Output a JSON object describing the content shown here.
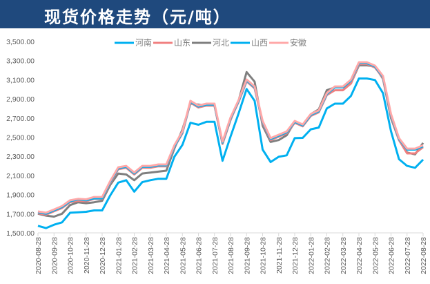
{
  "header": {
    "title": "现货价格走势（元/吨）"
  },
  "colors": {
    "header_bg": "#1f497d",
    "河南": "#00b0f0",
    "山东": "#f08080",
    "河北": "#7f7f7f",
    "山西": "#00b0f0",
    "安徽": "#ffa8a8"
  },
  "chart_data": {
    "type": "line",
    "title": "现货价格走势（元/吨）",
    "xlabel": "",
    "ylabel": "",
    "ylim": [
      1500,
      3500
    ],
    "yticks": [
      "1,500.00",
      "1,700.00",
      "1,900.00",
      "2,100.00",
      "2,300.00",
      "2,500.00",
      "2,700.00",
      "2,900.00",
      "3,100.00",
      "3,300.00",
      "3,500.00"
    ],
    "xtick_labels": [
      "2020-08-28",
      "2020-09-28",
      "2020-10-28",
      "2020-11-28",
      "2020-12-28",
      "2021-01-28",
      "2021-02-28",
      "2021-03-28",
      "2021-04-28",
      "2021-05-28",
      "2021-06-28",
      "2021-07-28",
      "2021-08-28",
      "2021-09-28",
      "2021-10-28",
      "2021-11-28",
      "2021-12-28",
      "2022-01-28",
      "2022-02-28",
      "2022-03-28",
      "2022-04-28",
      "2022-05-28",
      "2022-06-28",
      "2022-07-28",
      "2022-08-28"
    ],
    "grid": false,
    "legend_position": "top",
    "x": [
      "2020-08-28",
      "2020-09-13",
      "2020-09-28",
      "2020-10-13",
      "2020-10-28",
      "2020-11-13",
      "2020-11-28",
      "2020-12-13",
      "2020-12-28",
      "2021-01-13",
      "2021-01-28",
      "2021-02-13",
      "2021-02-28",
      "2021-03-13",
      "2021-03-28",
      "2021-04-13",
      "2021-04-28",
      "2021-05-13",
      "2021-05-28",
      "2021-06-13",
      "2021-06-28",
      "2021-07-13",
      "2021-07-28",
      "2021-08-13",
      "2021-08-28",
      "2021-09-13",
      "2021-09-28",
      "2021-10-13",
      "2021-10-28",
      "2021-11-13",
      "2021-11-28",
      "2021-12-13",
      "2021-12-28",
      "2022-01-13",
      "2022-01-28",
      "2022-02-13",
      "2022-02-28",
      "2022-03-13",
      "2022-03-28",
      "2022-04-13",
      "2022-04-28",
      "2022-05-13",
      "2022-05-28",
      "2022-06-13",
      "2022-06-28",
      "2022-07-13",
      "2022-07-28",
      "2022-08-13",
      "2022-08-28"
    ],
    "series": [
      {
        "name": "河南",
        "values": [
          1574,
          1550,
          1585,
          1610,
          1710,
          1715,
          1720,
          1735,
          1735,
          1890,
          2025,
          2050,
          1930,
          2030,
          2050,
          2065,
          2065,
          2295,
          2420,
          2650,
          2630,
          2660,
          2660,
          2253,
          2506,
          2746,
          3003,
          2880,
          2370,
          2240,
          2295,
          2310,
          2490,
          2493,
          2582,
          2600,
          2800,
          2850,
          2850,
          2930,
          3113,
          3113,
          3097,
          2960,
          2562,
          2270,
          2200,
          2180,
          2265
        ]
      },
      {
        "name": "山东",
        "values": [
          1704,
          1690,
          1725,
          1760,
          1820,
          1835,
          1830,
          1855,
          1855,
          2020,
          2165,
          2180,
          2110,
          2180,
          2180,
          2195,
          2195,
          2395,
          2540,
          2860,
          2810,
          2830,
          2830,
          2433,
          2686,
          2866,
          3083,
          3010,
          2650,
          2470,
          2505,
          2540,
          2650,
          2613,
          2722,
          2760,
          2940,
          2990,
          2990,
          3060,
          3263,
          3263,
          3227,
          3120,
          2722,
          2470,
          2330,
          2330,
          2395
        ]
      },
      {
        "name": "河北",
        "values": [
          1700,
          1680,
          1670,
          1700,
          1790,
          1820,
          1810,
          1820,
          1835,
          2000,
          2120,
          2110,
          2050,
          2120,
          2130,
          2140,
          2150,
          2380,
          2580,
          2850,
          2840,
          2830,
          2830,
          2430,
          2680,
          2880,
          3180,
          3080,
          2620,
          2450,
          2470,
          2520,
          2660,
          2630,
          2740,
          2790,
          2990,
          3020,
          3020,
          3060,
          3250,
          3250,
          3240,
          3110,
          2700,
          2470,
          2340,
          2320,
          2440
        ]
      },
      {
        "name": "山西",
        "values": [
          1715,
          1700,
          1735,
          1770,
          1830,
          1850,
          1840,
          1860,
          1860,
          2030,
          2175,
          2190,
          2120,
          2190,
          2190,
          2205,
          2205,
          2400,
          2550,
          2870,
          2820,
          2840,
          2840,
          2443,
          2696,
          2876,
          3093,
          3020,
          2660,
          2480,
          2515,
          2550,
          2660,
          2623,
          2732,
          2770,
          2950,
          3020,
          3020,
          3090,
          3273,
          3273,
          3237,
          3130,
          2732,
          2480,
          2370,
          2370,
          2405
        ]
      },
      {
        "name": "安徽",
        "values": [
          1724,
          1710,
          1745,
          1780,
          1840,
          1855,
          1850,
          1875,
          1875,
          2040,
          2185,
          2200,
          2130,
          2200,
          2200,
          2215,
          2215,
          2415,
          2560,
          2880,
          2830,
          2850,
          2850,
          2453,
          2706,
          2886,
          3103,
          3030,
          2670,
          2490,
          2525,
          2560,
          2670,
          2633,
          2742,
          2780,
          2960,
          3030,
          3030,
          3100,
          3283,
          3283,
          3247,
          3140,
          2742,
          2490,
          2380,
          2380,
          2415
        ]
      }
    ]
  }
}
